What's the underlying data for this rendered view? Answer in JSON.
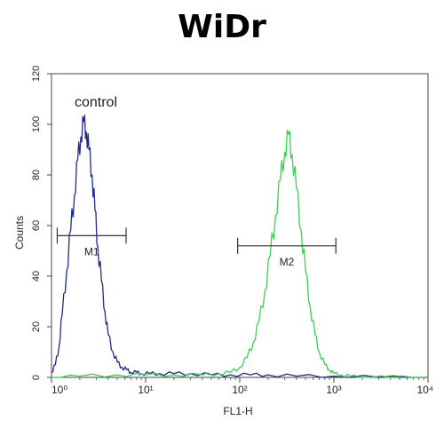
{
  "chart_data": {
    "type": "line",
    "title": "WiDr",
    "xlabel": "FL1-H",
    "ylabel": "Counts",
    "xscale": "log",
    "xlim": [
      1,
      10000
    ],
    "ylim": [
      0,
      120
    ],
    "x_tick_labels": [
      "10⁰",
      "10¹",
      "10²",
      "10³",
      "10⁴"
    ],
    "y_tick_labels": [
      "0",
      "20",
      "40",
      "60",
      "80",
      "100",
      "120"
    ],
    "y_ticks": [
      0,
      20,
      40,
      60,
      80,
      100,
      120
    ],
    "annotations": [
      "control"
    ],
    "markers": [
      {
        "label": "M1",
        "x_range": [
          1.15,
          6.2
        ],
        "y": 56
      },
      {
        "label": "M2",
        "x_range": [
          95,
          1050
        ],
        "y": 52
      }
    ],
    "series": [
      {
        "color": "#1f2a8c",
        "x": [
          1.0,
          1.1,
          1.2,
          1.3,
          1.45,
          1.6,
          1.75,
          1.9,
          2.05,
          2.2,
          2.35,
          2.5,
          2.7,
          2.9,
          3.1,
          3.4,
          3.7,
          4.0,
          4.5,
          5.0,
          5.6,
          6.3,
          7.0,
          8.0,
          9.0,
          11,
          14,
          20,
          30,
          50,
          80,
          130,
          200,
          400,
          1000,
          3000,
          9000
        ],
        "y": [
          2,
          5,
          12,
          25,
          42,
          58,
          72,
          86,
          95,
          101,
          97,
          90,
          80,
          66,
          52,
          38,
          26,
          17,
          10,
          6,
          4,
          3,
          2,
          2,
          1.5,
          1.5,
          1.5,
          1.5,
          1.5,
          1,
          1,
          1,
          1,
          0.5,
          0.5,
          0,
          0
        ]
      },
      {
        "color": "#39d14f",
        "x": [
          1.0,
          2,
          5,
          10,
          20,
          40,
          60,
          80,
          100,
          120,
          140,
          160,
          185,
          210,
          240,
          270,
          300,
          330,
          360,
          400,
          450,
          500,
          560,
          630,
          700,
          800,
          900,
          1000,
          1200,
          1500,
          2000,
          4000,
          9000
        ],
        "y": [
          0,
          0.5,
          1,
          1,
          1,
          1,
          1.5,
          2,
          4,
          8,
          14,
          22,
          34,
          48,
          64,
          78,
          89,
          96,
          88,
          75,
          58,
          42,
          28,
          17,
          10,
          5,
          3,
          1.5,
          1,
          0.5,
          0,
          0,
          0
        ]
      }
    ]
  }
}
